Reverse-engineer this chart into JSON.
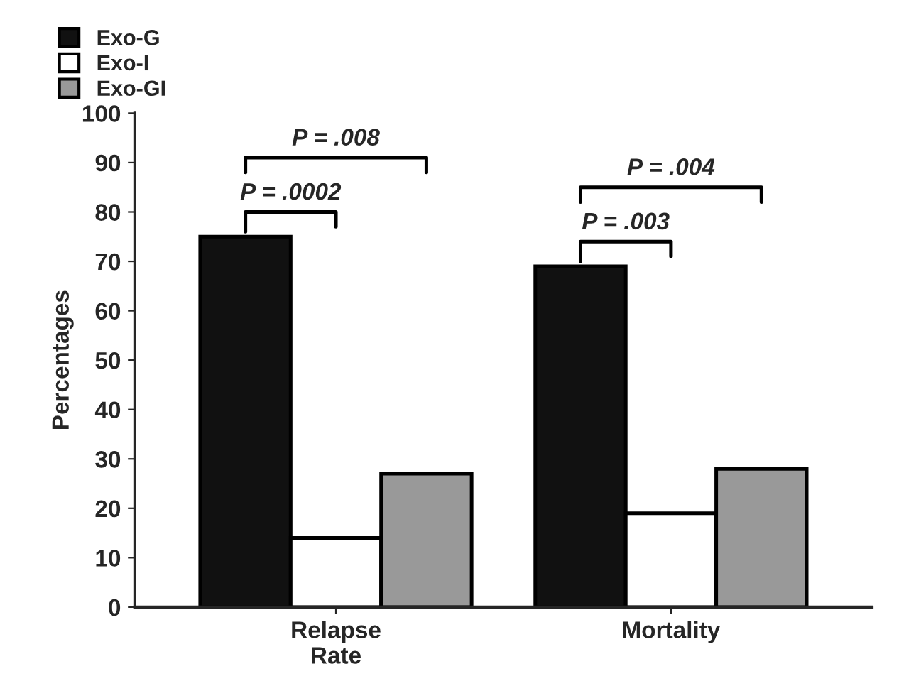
{
  "chart_data": {
    "type": "bar",
    "ylabel": "Percentages",
    "categories": [
      "Relapse\nRate",
      "Mortality"
    ],
    "series": [
      {
        "name": "Exo-G",
        "color": "#111111",
        "values": [
          75,
          69
        ]
      },
      {
        "name": "Exo-I",
        "color": "#ffffff",
        "values": [
          14,
          19
        ]
      },
      {
        "name": "Exo-GI",
        "color": "#999999",
        "values": [
          27,
          28
        ]
      }
    ],
    "ylim": [
      0,
      100
    ],
    "yticks": [
      0,
      10,
      20,
      30,
      40,
      50,
      60,
      70,
      80,
      90,
      100
    ],
    "annotations": [
      "P = .0002",
      "P = .008",
      "P = .003",
      "P = .004"
    ],
    "legend": "top left",
    "grid": false
  }
}
